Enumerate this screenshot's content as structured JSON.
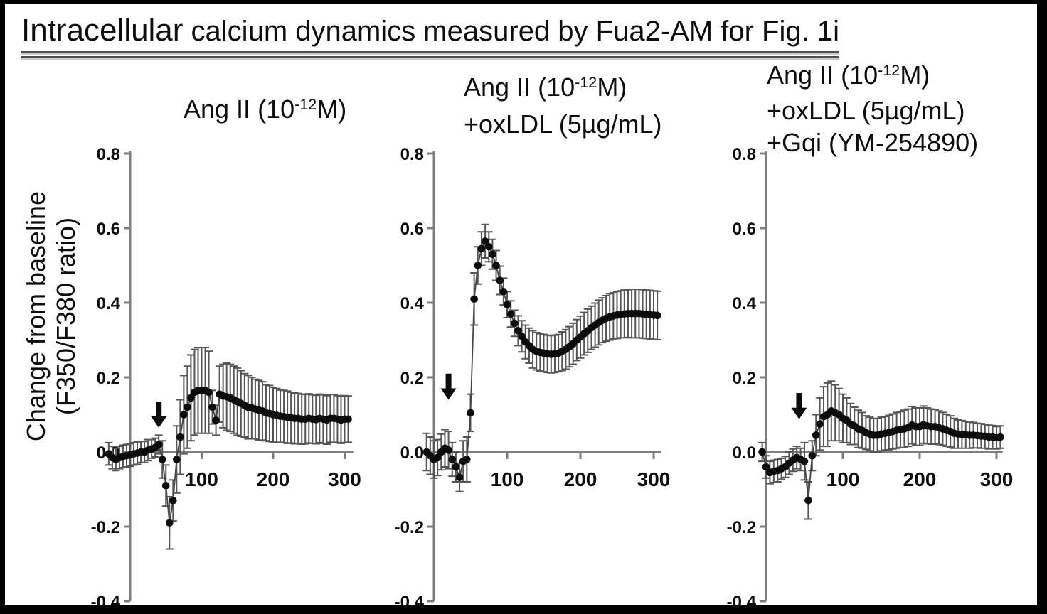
{
  "figure": {
    "title_text": "Intracellular calcium dynamics measured by Fua2-AM for Fig. 1i",
    "title_lines": [
      [
        {
          "t": "Intracellular",
          "cls": "big"
        },
        {
          "t": " calcium dynamics measured by Fua2-AM for Fig. 1i"
        }
      ]
    ],
    "ylabel_line1": "Change from baseline",
    "ylabel_line2": "(F350/F380 ratio)"
  },
  "colors": {
    "background": "#ffffff",
    "frame": "#000000",
    "axis_gray": "#7e7e7e",
    "error_bar_gray": "#565656",
    "trace_gray": "#454545",
    "marker_black": "#0b0b0b",
    "text_black": "#111111"
  },
  "chart_data": [
    {
      "type": "line",
      "title_text": "Ang II (10⁻¹²M)",
      "title_lines": [
        [
          {
            "t": "Ang II (10"
          },
          {
            "t": "-12",
            "sup": true
          },
          {
            "t": "M)"
          }
        ]
      ],
      "xlabel": "time (s, unlabeled)",
      "ylabel": "Change from baseline (F350/F380 ratio)",
      "xlim": [
        -35,
        312
      ],
      "ylim": [
        -0.4,
        0.8
      ],
      "x_tick_values": [
        100,
        200,
        300
      ],
      "x_tick_labels": [
        "100",
        "200",
        "300"
      ],
      "y_tick_values": [
        0.8,
        0.6,
        0.4,
        0.2,
        0.0,
        -0.2,
        -0.4
      ],
      "y_tick_labels": [
        "0.8",
        "0.6",
        "0.4",
        "0.2",
        "0.0",
        "-0.2",
        "-0.4"
      ],
      "grid": false,
      "legend": "none",
      "arrow": {
        "x": 40,
        "y_tip": 0.065,
        "y_top": 0.135
      },
      "x": [
        -30,
        -25,
        -20,
        -15,
        -10,
        -5,
        0,
        5,
        10,
        15,
        20,
        25,
        30,
        35,
        40,
        45,
        50,
        55,
        60,
        65,
        70,
        75,
        80,
        85,
        90,
        95,
        100,
        105,
        110,
        115,
        120,
        125,
        130,
        135,
        140,
        145,
        150,
        155,
        160,
        165,
        170,
        175,
        180,
        185,
        190,
        195,
        200,
        205,
        210,
        215,
        220,
        225,
        230,
        235,
        240,
        245,
        250,
        255,
        260,
        265,
        270,
        275,
        280,
        285,
        290,
        295,
        300,
        305
      ],
      "y": [
        -0.005,
        -0.015,
        -0.02,
        -0.015,
        -0.012,
        -0.01,
        -0.008,
        -0.005,
        -0.003,
        0.0,
        0.0,
        0.005,
        0.008,
        0.012,
        0.02,
        -0.02,
        -0.09,
        -0.19,
        -0.13,
        -0.02,
        0.04,
        0.1,
        0.12,
        0.145,
        0.16,
        0.165,
        0.165,
        0.165,
        0.16,
        0.12,
        0.085,
        0.155,
        0.15,
        0.148,
        0.145,
        0.14,
        0.135,
        0.13,
        0.125,
        0.12,
        0.118,
        0.115,
        0.112,
        0.11,
        0.105,
        0.103,
        0.1,
        0.098,
        0.096,
        0.095,
        0.093,
        0.092,
        0.09,
        0.09,
        0.088,
        0.088,
        0.09,
        0.088,
        0.087,
        0.09,
        0.088,
        0.086,
        0.09,
        0.09,
        0.088,
        0.086,
        0.088,
        0.088
      ],
      "err": [
        0.03,
        0.03,
        0.03,
        0.03,
        0.03,
        0.03,
        0.03,
        0.03,
        0.03,
        0.028,
        0.028,
        0.028,
        0.025,
        0.025,
        0.025,
        0.05,
        0.055,
        0.07,
        0.055,
        0.09,
        0.1,
        0.105,
        0.11,
        0.115,
        0.115,
        0.115,
        0.115,
        0.115,
        0.11,
        0.045,
        0.04,
        0.075,
        0.085,
        0.09,
        0.09,
        0.09,
        0.09,
        0.088,
        0.085,
        0.085,
        0.082,
        0.08,
        0.08,
        0.078,
        0.075,
        0.075,
        0.073,
        0.072,
        0.07,
        0.07,
        0.07,
        0.068,
        0.068,
        0.067,
        0.067,
        0.066,
        0.066,
        0.065,
        0.065,
        0.065,
        0.065,
        0.065,
        0.064,
        0.064,
        0.063,
        0.063,
        0.063,
        0.062
      ]
    },
    {
      "type": "line",
      "title_text": "Ang II (10⁻¹²M) +oxLDL (5µg/mL)",
      "title_lines": [
        [
          {
            "t": "Ang II (10"
          },
          {
            "t": "-12",
            "sup": true
          },
          {
            "t": "M)"
          }
        ],
        [
          {
            "t": "+oxLDL (5µg/mL)"
          }
        ]
      ],
      "xlabel": "time (s, unlabeled)",
      "ylabel": "Change from baseline (F350/F380 ratio)",
      "xlim": [
        -15,
        310
      ],
      "ylim": [
        -0.4,
        0.8
      ],
      "x_tick_values": [
        100,
        200,
        300
      ],
      "x_tick_labels": [
        "100",
        "200",
        "300"
      ],
      "y_tick_values": [
        0.8,
        0.6,
        0.4,
        0.2,
        0.0,
        -0.2,
        -0.4
      ],
      "y_tick_labels": [
        "0.8",
        "0.6",
        "0.4",
        "0.2",
        "0.0",
        "-0.2",
        "-0.4"
      ],
      "grid": false,
      "legend": "none",
      "arrow": {
        "x": 20,
        "y_tip": 0.14,
        "y_top": 0.21
      },
      "x": [
        -10,
        -5,
        0,
        5,
        10,
        15,
        20,
        25,
        30,
        35,
        40,
        45,
        50,
        55,
        60,
        65,
        70,
        75,
        80,
        85,
        90,
        95,
        100,
        105,
        110,
        115,
        120,
        125,
        130,
        135,
        140,
        145,
        150,
        155,
        160,
        165,
        170,
        175,
        180,
        185,
        190,
        195,
        200,
        205,
        210,
        215,
        220,
        225,
        230,
        235,
        240,
        245,
        250,
        255,
        260,
        265,
        270,
        275,
        280,
        285,
        290,
        295,
        300,
        305
      ],
      "y": [
        0.0,
        -0.01,
        -0.02,
        -0.015,
        0.0,
        0.01,
        0.005,
        -0.02,
        -0.04,
        -0.068,
        -0.025,
        -0.02,
        0.105,
        0.41,
        0.5,
        0.545,
        0.565,
        0.55,
        0.53,
        0.5,
        0.46,
        0.43,
        0.395,
        0.37,
        0.345,
        0.325,
        0.31,
        0.295,
        0.285,
        0.275,
        0.27,
        0.267,
        0.265,
        0.263,
        0.262,
        0.263,
        0.265,
        0.27,
        0.275,
        0.282,
        0.29,
        0.3,
        0.308,
        0.317,
        0.325,
        0.333,
        0.34,
        0.347,
        0.353,
        0.358,
        0.362,
        0.365,
        0.367,
        0.369,
        0.37,
        0.371,
        0.371,
        0.371,
        0.371,
        0.37,
        0.369,
        0.368,
        0.367,
        0.366
      ],
      "err": [
        0.05,
        0.05,
        0.05,
        0.048,
        0.048,
        0.05,
        0.05,
        0.045,
        0.04,
        0.038,
        0.055,
        0.06,
        0.05,
        0.07,
        0.05,
        0.045,
        0.045,
        0.04,
        0.04,
        0.04,
        0.038,
        0.036,
        0.035,
        0.035,
        0.035,
        0.04,
        0.042,
        0.045,
        0.047,
        0.05,
        0.05,
        0.05,
        0.05,
        0.05,
        0.05,
        0.05,
        0.05,
        0.052,
        0.053,
        0.054,
        0.055,
        0.055,
        0.056,
        0.057,
        0.058,
        0.058,
        0.059,
        0.06,
        0.06,
        0.061,
        0.062,
        0.062,
        0.063,
        0.063,
        0.064,
        0.064,
        0.065,
        0.065,
        0.065,
        0.065,
        0.065,
        0.065,
        0.065,
        0.065
      ]
    },
    {
      "type": "line",
      "title_text": "Ang II (10⁻¹²M) +oxLDL (5µg/mL) +Gqi (YM-254890)",
      "title_lines": [
        [
          {
            "t": "Ang II (10"
          },
          {
            "t": "-12",
            "sup": true
          },
          {
            "t": "M)"
          }
        ],
        [
          {
            "t": "+oxLDL (5µg/mL)"
          }
        ],
        [
          {
            "t": "+Gqi (YM-254890)"
          }
        ]
      ],
      "xlabel": "time (s, unlabeled)",
      "ylabel": "Change from baseline (F350/F380 ratio)",
      "xlim": [
        -10,
        308
      ],
      "ylim": [
        -0.4,
        0.8
      ],
      "x_tick_values": [
        100,
        200,
        300
      ],
      "x_tick_labels": [
        "100",
        "200",
        "300"
      ],
      "y_tick_values": [
        0.8,
        0.6,
        0.4,
        0.2,
        0.0,
        -0.2,
        -0.4
      ],
      "y_tick_labels": [
        "0.8",
        "0.6",
        "0.4",
        "0.2",
        "0.0",
        "-0.2",
        "-0.4"
      ],
      "grid": false,
      "legend": "none",
      "arrow": {
        "x": 43,
        "y_tip": 0.088,
        "y_top": 0.158
      },
      "x": [
        -5,
        0,
        5,
        10,
        15,
        20,
        25,
        30,
        35,
        40,
        45,
        50,
        55,
        60,
        65,
        70,
        75,
        80,
        85,
        90,
        95,
        100,
        105,
        110,
        115,
        120,
        125,
        130,
        135,
        140,
        145,
        150,
        155,
        160,
        165,
        170,
        175,
        180,
        185,
        190,
        195,
        200,
        205,
        210,
        215,
        220,
        225,
        230,
        235,
        240,
        245,
        250,
        255,
        260,
        265,
        270,
        275,
        280,
        285,
        290,
        295,
        300,
        305
      ],
      "y": [
        0.0,
        -0.04,
        -0.055,
        -0.052,
        -0.05,
        -0.045,
        -0.04,
        -0.03,
        -0.022,
        -0.015,
        -0.02,
        -0.025,
        -0.13,
        -0.01,
        0.045,
        0.075,
        0.095,
        0.1,
        0.11,
        0.105,
        0.1,
        0.09,
        0.085,
        0.075,
        0.07,
        0.062,
        0.058,
        0.052,
        0.048,
        0.045,
        0.045,
        0.048,
        0.05,
        0.052,
        0.055,
        0.058,
        0.06,
        0.062,
        0.065,
        0.072,
        0.068,
        0.068,
        0.073,
        0.07,
        0.068,
        0.068,
        0.065,
        0.062,
        0.058,
        0.055,
        0.05,
        0.048,
        0.047,
        0.046,
        0.045,
        0.045,
        0.044,
        0.043,
        0.042,
        0.04,
        0.04,
        0.038,
        0.04
      ],
      "err": [
        0.025,
        0.03,
        0.03,
        0.03,
        0.03,
        0.028,
        0.028,
        0.03,
        0.03,
        0.03,
        0.03,
        0.05,
        0.05,
        0.04,
        0.055,
        0.07,
        0.08,
        0.085,
        0.08,
        0.075,
        0.07,
        0.065,
        0.06,
        0.055,
        0.05,
        0.05,
        0.048,
        0.045,
        0.045,
        0.045,
        0.045,
        0.045,
        0.045,
        0.046,
        0.047,
        0.048,
        0.048,
        0.05,
        0.05,
        0.05,
        0.05,
        0.05,
        0.05,
        0.048,
        0.047,
        0.046,
        0.045,
        0.044,
        0.043,
        0.042,
        0.04,
        0.038,
        0.037,
        0.036,
        0.035,
        0.034,
        0.033,
        0.033,
        0.032,
        0.032,
        0.031,
        0.03,
        0.03
      ]
    }
  ]
}
